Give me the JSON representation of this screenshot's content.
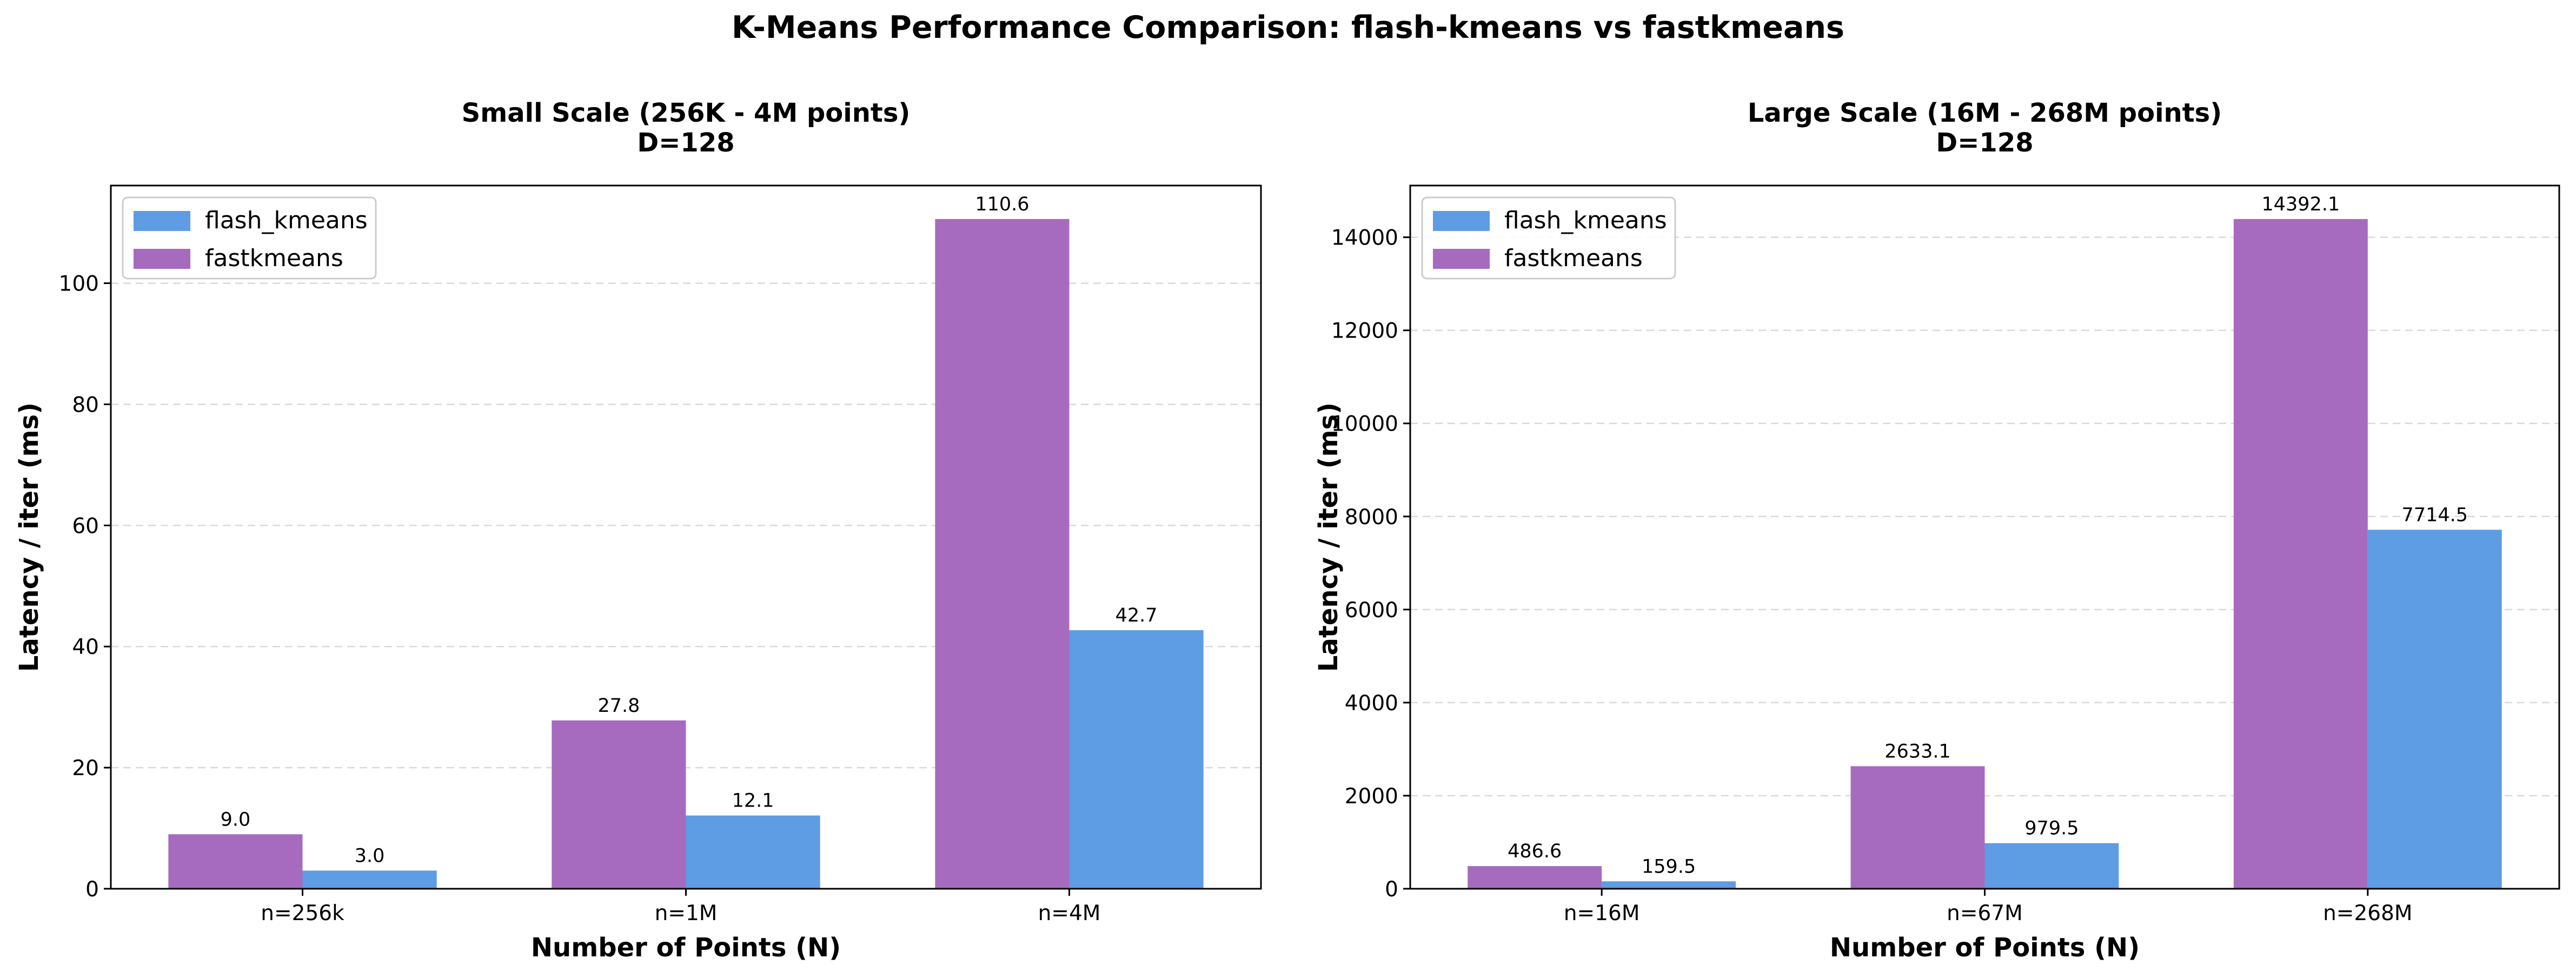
{
  "figure_title": "K-Means Performance Comparison: flash-kmeans vs fastkmeans",
  "colors": {
    "flash_kmeans": "#5e9ce4",
    "fastkmeans": "#a66bbe",
    "grid": "#d9d9d9"
  },
  "chart_data": [
    {
      "type": "bar",
      "title": "Small Scale (256K - 4M points)",
      "subtitle": "D=128",
      "xlabel": "Number of Points (N)",
      "ylabel": "Latency / iter (ms)",
      "categories": [
        "n=256k",
        "n=1M",
        "n=4M"
      ],
      "series": [
        {
          "name": "fastkmeans",
          "values": [
            9.0,
            27.8,
            110.6
          ],
          "labels": [
            "9.0",
            "27.8",
            "110.6"
          ]
        },
        {
          "name": "flash_kmeans",
          "values": [
            3.0,
            12.1,
            42.7
          ],
          "labels": [
            "3.0",
            "12.1",
            "42.7"
          ]
        }
      ],
      "legend_order": [
        "flash_kmeans",
        "fastkmeans"
      ],
      "ylim": [
        0,
        116.13
      ],
      "yticks": [
        0,
        20,
        40,
        60,
        80,
        100
      ],
      "grid": true,
      "legend_position": "top-left"
    },
    {
      "type": "bar",
      "title": "Large Scale (16M - 268M points)",
      "subtitle": "D=128",
      "xlabel": "Number of Points (N)",
      "ylabel": "Latency / iter (ms)",
      "categories": [
        "n=16M",
        "n=67M",
        "n=268M"
      ],
      "series": [
        {
          "name": "fastkmeans",
          "values": [
            486.6,
            2633.1,
            14392.1
          ],
          "labels": [
            "486.6",
            "2633.1",
            "14392.1"
          ]
        },
        {
          "name": "flash_kmeans",
          "values": [
            159.5,
            979.5,
            7714.5
          ],
          "labels": [
            "159.5",
            "979.5",
            "7714.5"
          ]
        }
      ],
      "legend_order": [
        "flash_kmeans",
        "fastkmeans"
      ],
      "ylim": [
        0,
        15111.7
      ],
      "yticks": [
        0,
        2000,
        4000,
        6000,
        8000,
        10000,
        12000,
        14000
      ],
      "grid": true,
      "legend_position": "top-left"
    }
  ]
}
